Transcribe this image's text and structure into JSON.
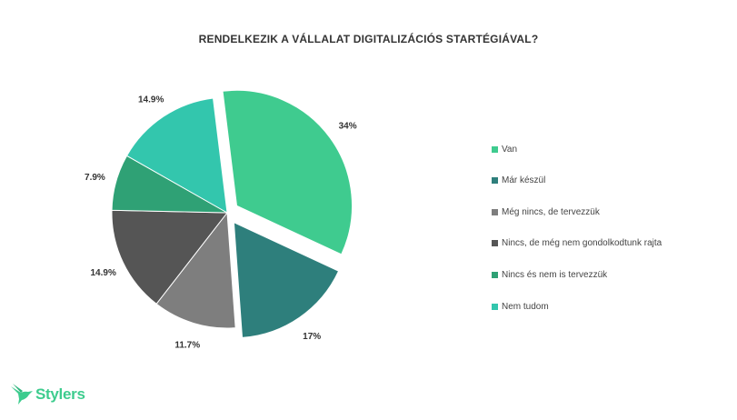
{
  "chart_data": {
    "type": "pie",
    "title": "RENDELKEZIK A VÁLLALAT DIGITALIZÁCIÓS STARTÉGIÁVAL?",
    "categories": [
      "Van",
      "Már készül",
      "Még nincs, de tervezzük",
      "Nincs, de még nem gondolkodtunk rajta",
      "Nincs és nem is tervezzük",
      "Nem tudom"
    ],
    "values": [
      34,
      17,
      11.7,
      14.9,
      7.9,
      14.9
    ],
    "labels": [
      "34%",
      "17%",
      "11.7%",
      "14.9%",
      "7.9%",
      "14.9%"
    ],
    "colors": [
      "#3fcb8f",
      "#2e7f7c",
      "#7e7e7e",
      "#555555",
      "#2fa175",
      "#33c6ad"
    ],
    "exploded": [
      true,
      true,
      false,
      false,
      false,
      false
    ],
    "legend_position": "right"
  },
  "brand": {
    "name": "Stylers",
    "color": "#3dcc8e"
  }
}
